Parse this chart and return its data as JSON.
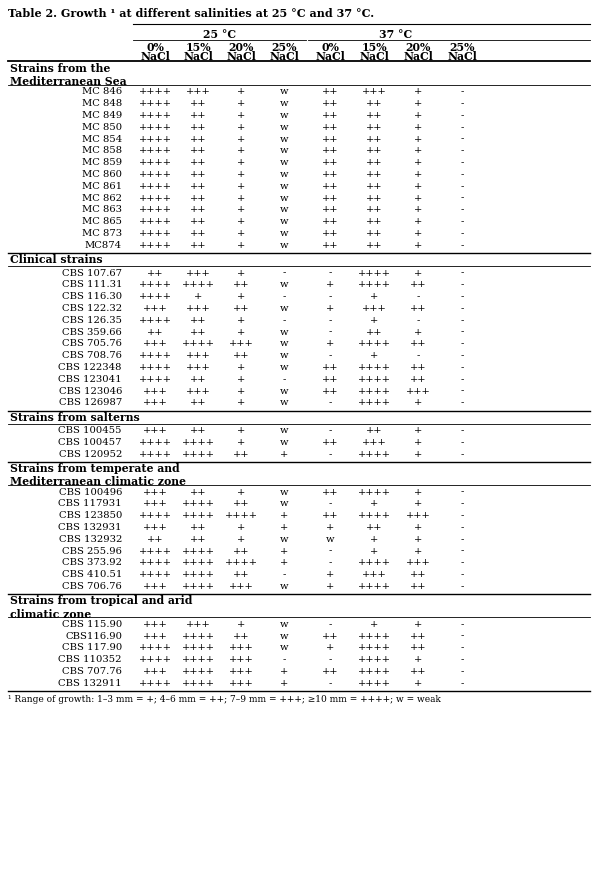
{
  "title": "Table 2. Growth ¹ at different salinities at 25 °C and 37 °C.",
  "col_headers": [
    "0%\nNaCl",
    "15%\nNaCl",
    "20%\nNaCl",
    "25%\nNaCl",
    "0%\nNaCl",
    "15%\nNaCl",
    "20%\nNaCl",
    "25%\nNaCl"
  ],
  "temp_labels": [
    "25 °C",
    "37 °C"
  ],
  "sections": [
    {
      "header": "Strains from the\nMediterranean Sea",
      "rows": [
        [
          "MC 846",
          "++++",
          "+++",
          "+",
          "w",
          "++",
          "+++",
          "+",
          "-"
        ],
        [
          "MC 848",
          "++++",
          "++",
          "+",
          "w",
          "++",
          "++",
          "+",
          "-"
        ],
        [
          "MC 849",
          "++++",
          "++",
          "+",
          "w",
          "++",
          "++",
          "+",
          "-"
        ],
        [
          "MC 850",
          "++++",
          "++",
          "+",
          "w",
          "++",
          "++",
          "+",
          "-"
        ],
        [
          "MC 854",
          "++++",
          "++",
          "+",
          "w",
          "++",
          "++",
          "+",
          "-"
        ],
        [
          "MC 858",
          "++++",
          "++",
          "+",
          "w",
          "++",
          "++",
          "+",
          "-"
        ],
        [
          "MC 859",
          "++++",
          "++",
          "+",
          "w",
          "++",
          "++",
          "+",
          "-"
        ],
        [
          "MC 860",
          "++++",
          "++",
          "+",
          "w",
          "++",
          "++",
          "+",
          "-"
        ],
        [
          "MC 861",
          "++++",
          "++",
          "+",
          "w",
          "++",
          "++",
          "+",
          "-"
        ],
        [
          "MC 862",
          "++++",
          "++",
          "+",
          "w",
          "++",
          "++",
          "+",
          "-"
        ],
        [
          "MC 863",
          "++++",
          "++",
          "+",
          "w",
          "++",
          "++",
          "+",
          "-"
        ],
        [
          "MC 865",
          "++++",
          "++",
          "+",
          "w",
          "++",
          "++",
          "+",
          "-"
        ],
        [
          "MC 873",
          "++++",
          "++",
          "+",
          "w",
          "++",
          "++",
          "+",
          "-"
        ],
        [
          "MC874",
          "++++",
          "++",
          "+",
          "w",
          "++",
          "++",
          "+",
          "-"
        ]
      ]
    },
    {
      "header": "Clinical strains",
      "rows": [
        [
          "CBS 107.67",
          "++",
          "+++",
          "+",
          "-",
          "-",
          "++++",
          "+",
          "-"
        ],
        [
          "CBS 111.31",
          "++++",
          "++++",
          "++",
          "w",
          "+",
          "++++",
          "++",
          "-"
        ],
        [
          "CBS 116.30",
          "++++",
          "+",
          "+",
          "-",
          "-",
          "+",
          "-",
          "-"
        ],
        [
          "CBS 122.32",
          "+++",
          "+++",
          "++",
          "w",
          "+",
          "+++",
          "++",
          "-"
        ],
        [
          "CBS 126.35",
          "++++",
          "++",
          "+",
          "-",
          "-",
          "+",
          "-",
          "-"
        ],
        [
          "CBS 359.66",
          "++",
          "++",
          "+",
          "w",
          "-",
          "++",
          "+",
          "-"
        ],
        [
          "CBS 705.76",
          "+++",
          "++++",
          "+++",
          "w",
          "+",
          "++++",
          "++",
          "-"
        ],
        [
          "CBS 708.76",
          "++++",
          "+++",
          "++",
          "w",
          "-",
          "+",
          "-",
          "-"
        ],
        [
          "CBS 122348",
          "++++",
          "+++",
          "+",
          "w",
          "++",
          "++++",
          "++",
          "-"
        ],
        [
          "CBS 123041",
          "++++",
          "++",
          "+",
          "-",
          "++",
          "++++",
          "++",
          "-"
        ],
        [
          "CBS 123046",
          "+++",
          "+++",
          "+",
          "w",
          "++",
          "++++",
          "+++",
          "-"
        ],
        [
          "CBS 126987",
          "+++",
          "++",
          "+",
          "w",
          "-",
          "++++",
          "+",
          "-"
        ]
      ]
    },
    {
      "header": "Strains from salterns",
      "rows": [
        [
          "CBS 100455",
          "+++",
          "++",
          "+",
          "w",
          "-",
          "++",
          "+",
          "-"
        ],
        [
          "CBS 100457",
          "++++",
          "++++",
          "+",
          "w",
          "++",
          "+++",
          "+",
          "-"
        ],
        [
          "CBS 120952",
          "++++",
          "++++",
          "++",
          "+",
          "-",
          "++++",
          "+",
          "-"
        ]
      ]
    },
    {
      "header": "Strains from temperate and\nMediterranean climatic zone",
      "rows": [
        [
          "CBS 100496",
          "+++",
          "++",
          "+",
          "w",
          "++",
          "++++",
          "+",
          "-"
        ],
        [
          "CBS 117931",
          "+++",
          "++++",
          "++",
          "w",
          "-",
          "+",
          "+",
          "-"
        ],
        [
          "CBS 123850",
          "++++",
          "++++",
          "++++",
          "+",
          "++",
          "++++",
          "+++",
          "-"
        ],
        [
          "CBS 132931",
          "+++",
          "++",
          "+",
          "+",
          "+",
          "++",
          "+",
          "-"
        ],
        [
          "CBS 132932",
          "++",
          "++",
          "+",
          "w",
          "w",
          "+",
          "+",
          "-"
        ],
        [
          "CBS 255.96",
          "++++",
          "++++",
          "++",
          "+",
          "-",
          "+",
          "+",
          "-"
        ],
        [
          "CBS 373.92",
          "++++",
          "++++",
          "++++",
          "+",
          "-",
          "++++",
          "+++",
          "-"
        ],
        [
          "CBS 410.51",
          "++++",
          "++++",
          "++",
          "-",
          "+",
          "+++",
          "++",
          "-"
        ],
        [
          "CBS 706.76",
          "+++",
          "++++",
          "+++",
          "w",
          "+",
          "++++",
          "++",
          "-"
        ]
      ]
    },
    {
      "header": "Strains from tropical and arid\nclimatic zone",
      "rows": [
        [
          "CBS 115.90",
          "+++",
          "+++",
          "+",
          "w",
          "-",
          "+",
          "+",
          "-"
        ],
        [
          "CBS116.90",
          "+++",
          "++++",
          "++",
          "w",
          "++",
          "++++",
          "++",
          "-"
        ],
        [
          "CBS 117.90",
          "++++",
          "++++",
          "+++",
          "w",
          "+",
          "++++",
          "++",
          "-"
        ],
        [
          "CBS 110352",
          "++++",
          "++++",
          "+++",
          "-",
          "-",
          "++++",
          "+",
          "-"
        ],
        [
          "CBS 707.76",
          "+++",
          "++++",
          "+++",
          "+",
          "++",
          "++++",
          "++",
          "-"
        ],
        [
          "CBS 132911",
          "++++",
          "++++",
          "+++",
          "+",
          "-",
          "++++",
          "+",
          "-"
        ]
      ]
    }
  ],
  "footnote": "¹ Range of growth: 1–3 mm = +; 4–6 mm = ++; 7–9 mm = +++; ≥10 mm = ++++; w = weak",
  "bg_color": "#ffffff",
  "text_color": "#000000"
}
